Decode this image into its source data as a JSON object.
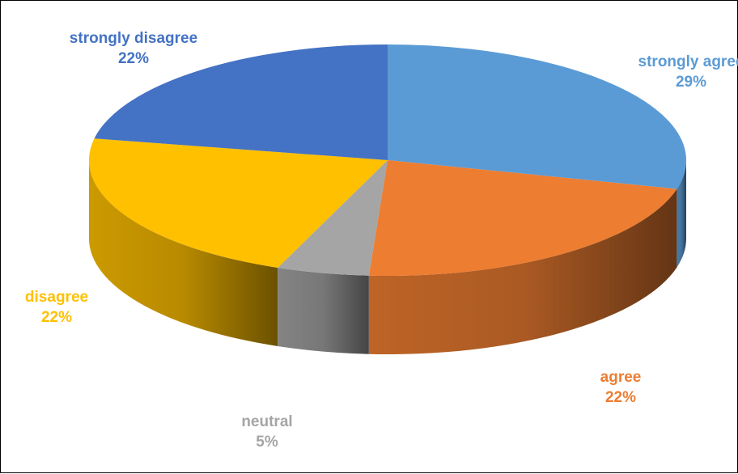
{
  "chart_data": {
    "type": "pie",
    "style": "3d",
    "categories": [
      "strongly agree",
      "agree",
      "neutral",
      "disagree",
      "strongly disagree"
    ],
    "values": [
      29,
      22,
      5,
      22,
      22
    ],
    "value_labels": [
      "29%",
      "22%",
      "5%",
      "22%",
      "22%"
    ],
    "colors": [
      "#5b9bd5",
      "#ed7d31",
      "#a5a5a5",
      "#ffc000",
      "#4472c4"
    ],
    "title": "",
    "legend": "none",
    "data_labels": "outside"
  }
}
